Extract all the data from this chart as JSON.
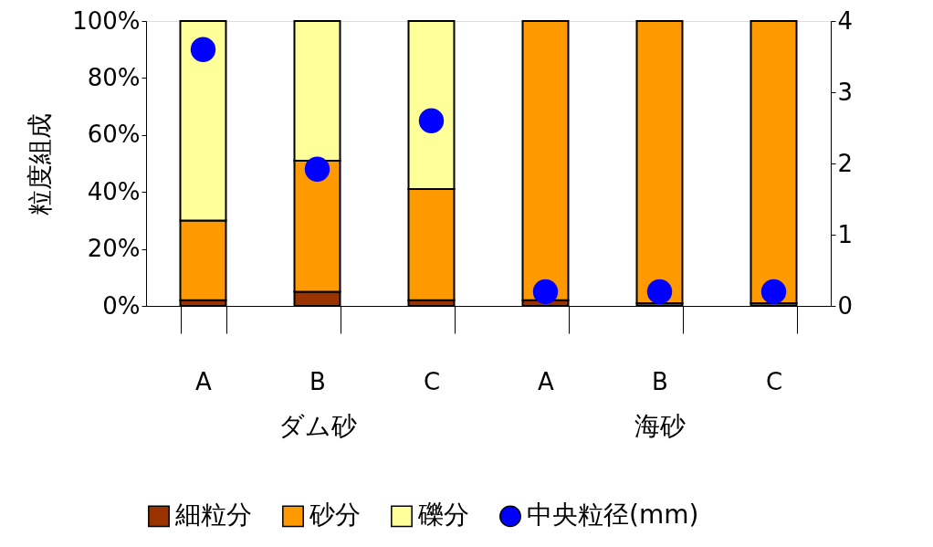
{
  "chart_data": {
    "type": "bar",
    "stacked": true,
    "ylabel": "粒度組成",
    "categories": [
      "A",
      "B",
      "C",
      "A",
      "B",
      "C"
    ],
    "series": [
      {
        "name": "細粒分",
        "color": "#993300",
        "values": [
          2,
          5,
          2,
          2,
          1,
          1
        ]
      },
      {
        "name": "砂分",
        "color": "#ff9900",
        "values": [
          28,
          46,
          39,
          98,
          99,
          99
        ]
      },
      {
        "name": "礫分",
        "color": "#ffff99",
        "values": [
          70,
          49,
          59,
          0,
          0,
          0
        ]
      },
      {
        "name": "中央粒径(mm)",
        "color": "#0000ff",
        "type": "scatter",
        "axis": "y2",
        "values": [
          3.6,
          1.92,
          2.6,
          0.2,
          0.2,
          0.2
        ]
      }
    ],
    "ylim": [
      0,
      100
    ],
    "yticks": [
      {
        "value": 0,
        "label": "0%"
      },
      {
        "value": 20,
        "label": "20%"
      },
      {
        "value": 40,
        "label": "40%"
      },
      {
        "value": 60,
        "label": "60%"
      },
      {
        "value": 80,
        "label": "80%"
      },
      {
        "value": 100,
        "label": "100%"
      }
    ],
    "y2lim": [
      0,
      4
    ],
    "y2ticks": [
      0,
      1,
      2,
      3,
      4
    ],
    "annotations": [
      "ダム砂",
      "海砂"
    ],
    "marker": "circle",
    "grid": false,
    "legend": "bottom"
  }
}
